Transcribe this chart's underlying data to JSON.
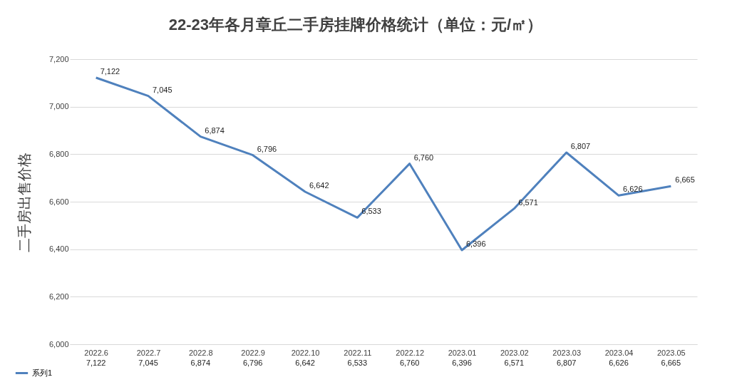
{
  "chart_data": {
    "type": "line",
    "title": "22-23年各月章丘二手房挂牌价格统计（单位：元/㎡）",
    "ylabel": "二手房出售价格",
    "categories": [
      "2022.6",
      "2022.7",
      "2022.8",
      "2022.9",
      "2022.10",
      "2022.11",
      "2022.12",
      "2023.01",
      "2023.02",
      "2023.03",
      "2023.04",
      "2023.05"
    ],
    "series": [
      {
        "name": "系列1",
        "color": "#4f81bd",
        "values": [
          7122,
          7045,
          6874,
          6796,
          6642,
          6533,
          6760,
          6396,
          6571,
          6807,
          6626,
          6665
        ],
        "value_labels": [
          "7,122",
          "7,045",
          "6,874",
          "6,796",
          "6,642",
          "6,533",
          "6,760",
          "6,396",
          "6,571",
          "6,807",
          "6,626",
          "6,665"
        ]
      }
    ],
    "ylim": [
      6000,
      7200
    ],
    "yticks": [
      {
        "value": 6000,
        "label": "6,000"
      },
      {
        "value": 6200,
        "label": "6,200"
      },
      {
        "value": 6400,
        "label": "6,400"
      },
      {
        "value": 6600,
        "label": "6,600"
      },
      {
        "value": 6800,
        "label": "6,800"
      },
      {
        "value": 7000,
        "label": "7,000"
      },
      {
        "value": 7200,
        "label": "7,200"
      }
    ],
    "grid": "y",
    "legend": "bottom left",
    "marker": "none",
    "line_style": "solid"
  }
}
